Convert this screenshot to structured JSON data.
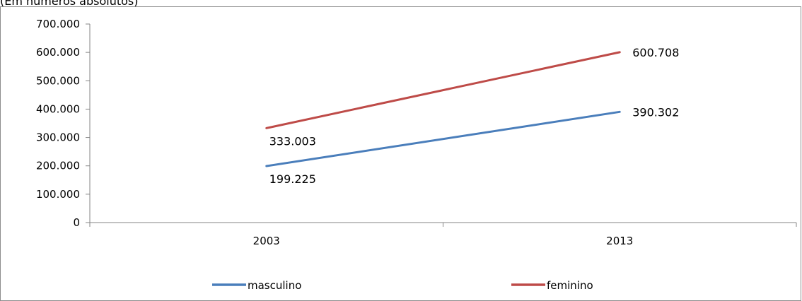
{
  "header": {
    "subtitle": "(Em números absolutos)"
  },
  "chart_data": {
    "type": "line",
    "x": [
      "2003",
      "2013"
    ],
    "ylim": [
      0,
      700000
    ],
    "y_ticks": [
      0,
      100000,
      200000,
      300000,
      400000,
      500000,
      600000,
      700000
    ],
    "y_tick_labels": [
      "0",
      "100.000",
      "200.000",
      "300.000",
      "400.000",
      "500.000",
      "600.000",
      "700.000"
    ],
    "series": [
      {
        "name": "masculino",
        "values": [
          199225,
          390302
        ],
        "labels": [
          "199.225",
          "390.302"
        ],
        "color": "#4a7ebb"
      },
      {
        "name": "feminino",
        "values": [
          333003,
          600708
        ],
        "labels": [
          "333.003",
          "600.708"
        ],
        "color": "#be4b48"
      }
    ],
    "legend": "bottom",
    "grid": false
  }
}
